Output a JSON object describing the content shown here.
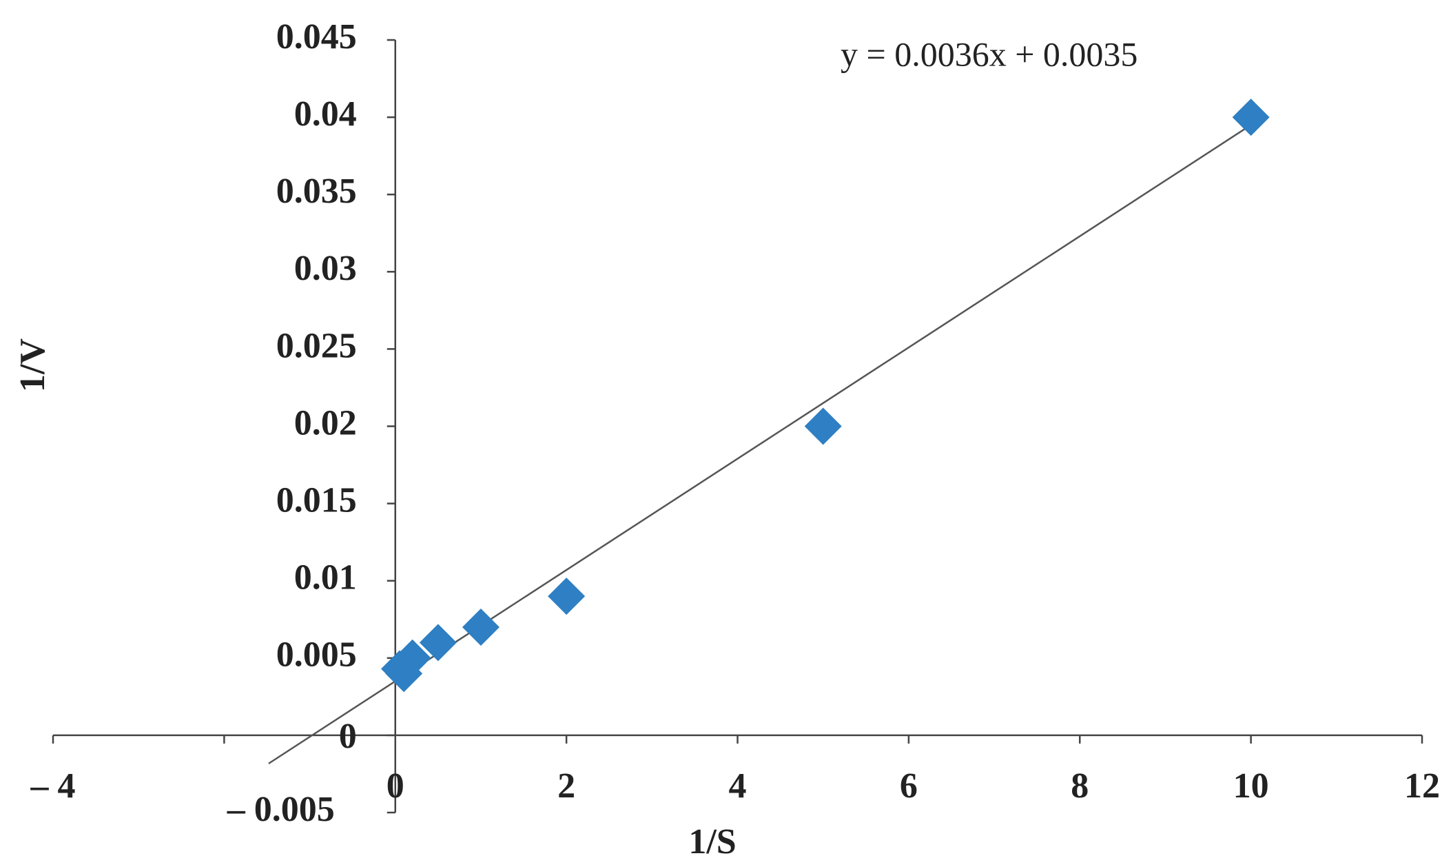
{
  "chart_data": {
    "type": "scatter",
    "x_label": "1/S",
    "y_label": "1/V",
    "series": [
      {
        "name": "1/V",
        "color": "#2e7fc3",
        "x": [
          0.05,
          0.1,
          0.2,
          0.5,
          1,
          2,
          5,
          10
        ],
        "values": [
          0.0043,
          0.004,
          0.005,
          0.006,
          0.007,
          0.009,
          0.02,
          0.04
        ]
      }
    ],
    "trendline": {
      "equation": "y = 0.0036x + 0.0035",
      "slope": 0.0036,
      "intercept": 0.0035,
      "xlim": [
        -1.48,
        10
      ],
      "color": "#555555"
    },
    "xlim": [
      -4,
      12
    ],
    "xticks": [
      {
        "value": -4,
        "label": "– 4"
      },
      {
        "value": -2,
        "label": null
      },
      0,
      2,
      4,
      6,
      8,
      10,
      12
    ],
    "ylim": [
      -0.005,
      0.045
    ],
    "yticks": [
      {
        "value": -0.005,
        "label": "– 0.005"
      },
      0,
      0.005,
      0.01,
      0.015,
      0.02,
      0.025,
      0.03,
      0.035,
      0.04,
      0.045
    ],
    "grid": false
  }
}
